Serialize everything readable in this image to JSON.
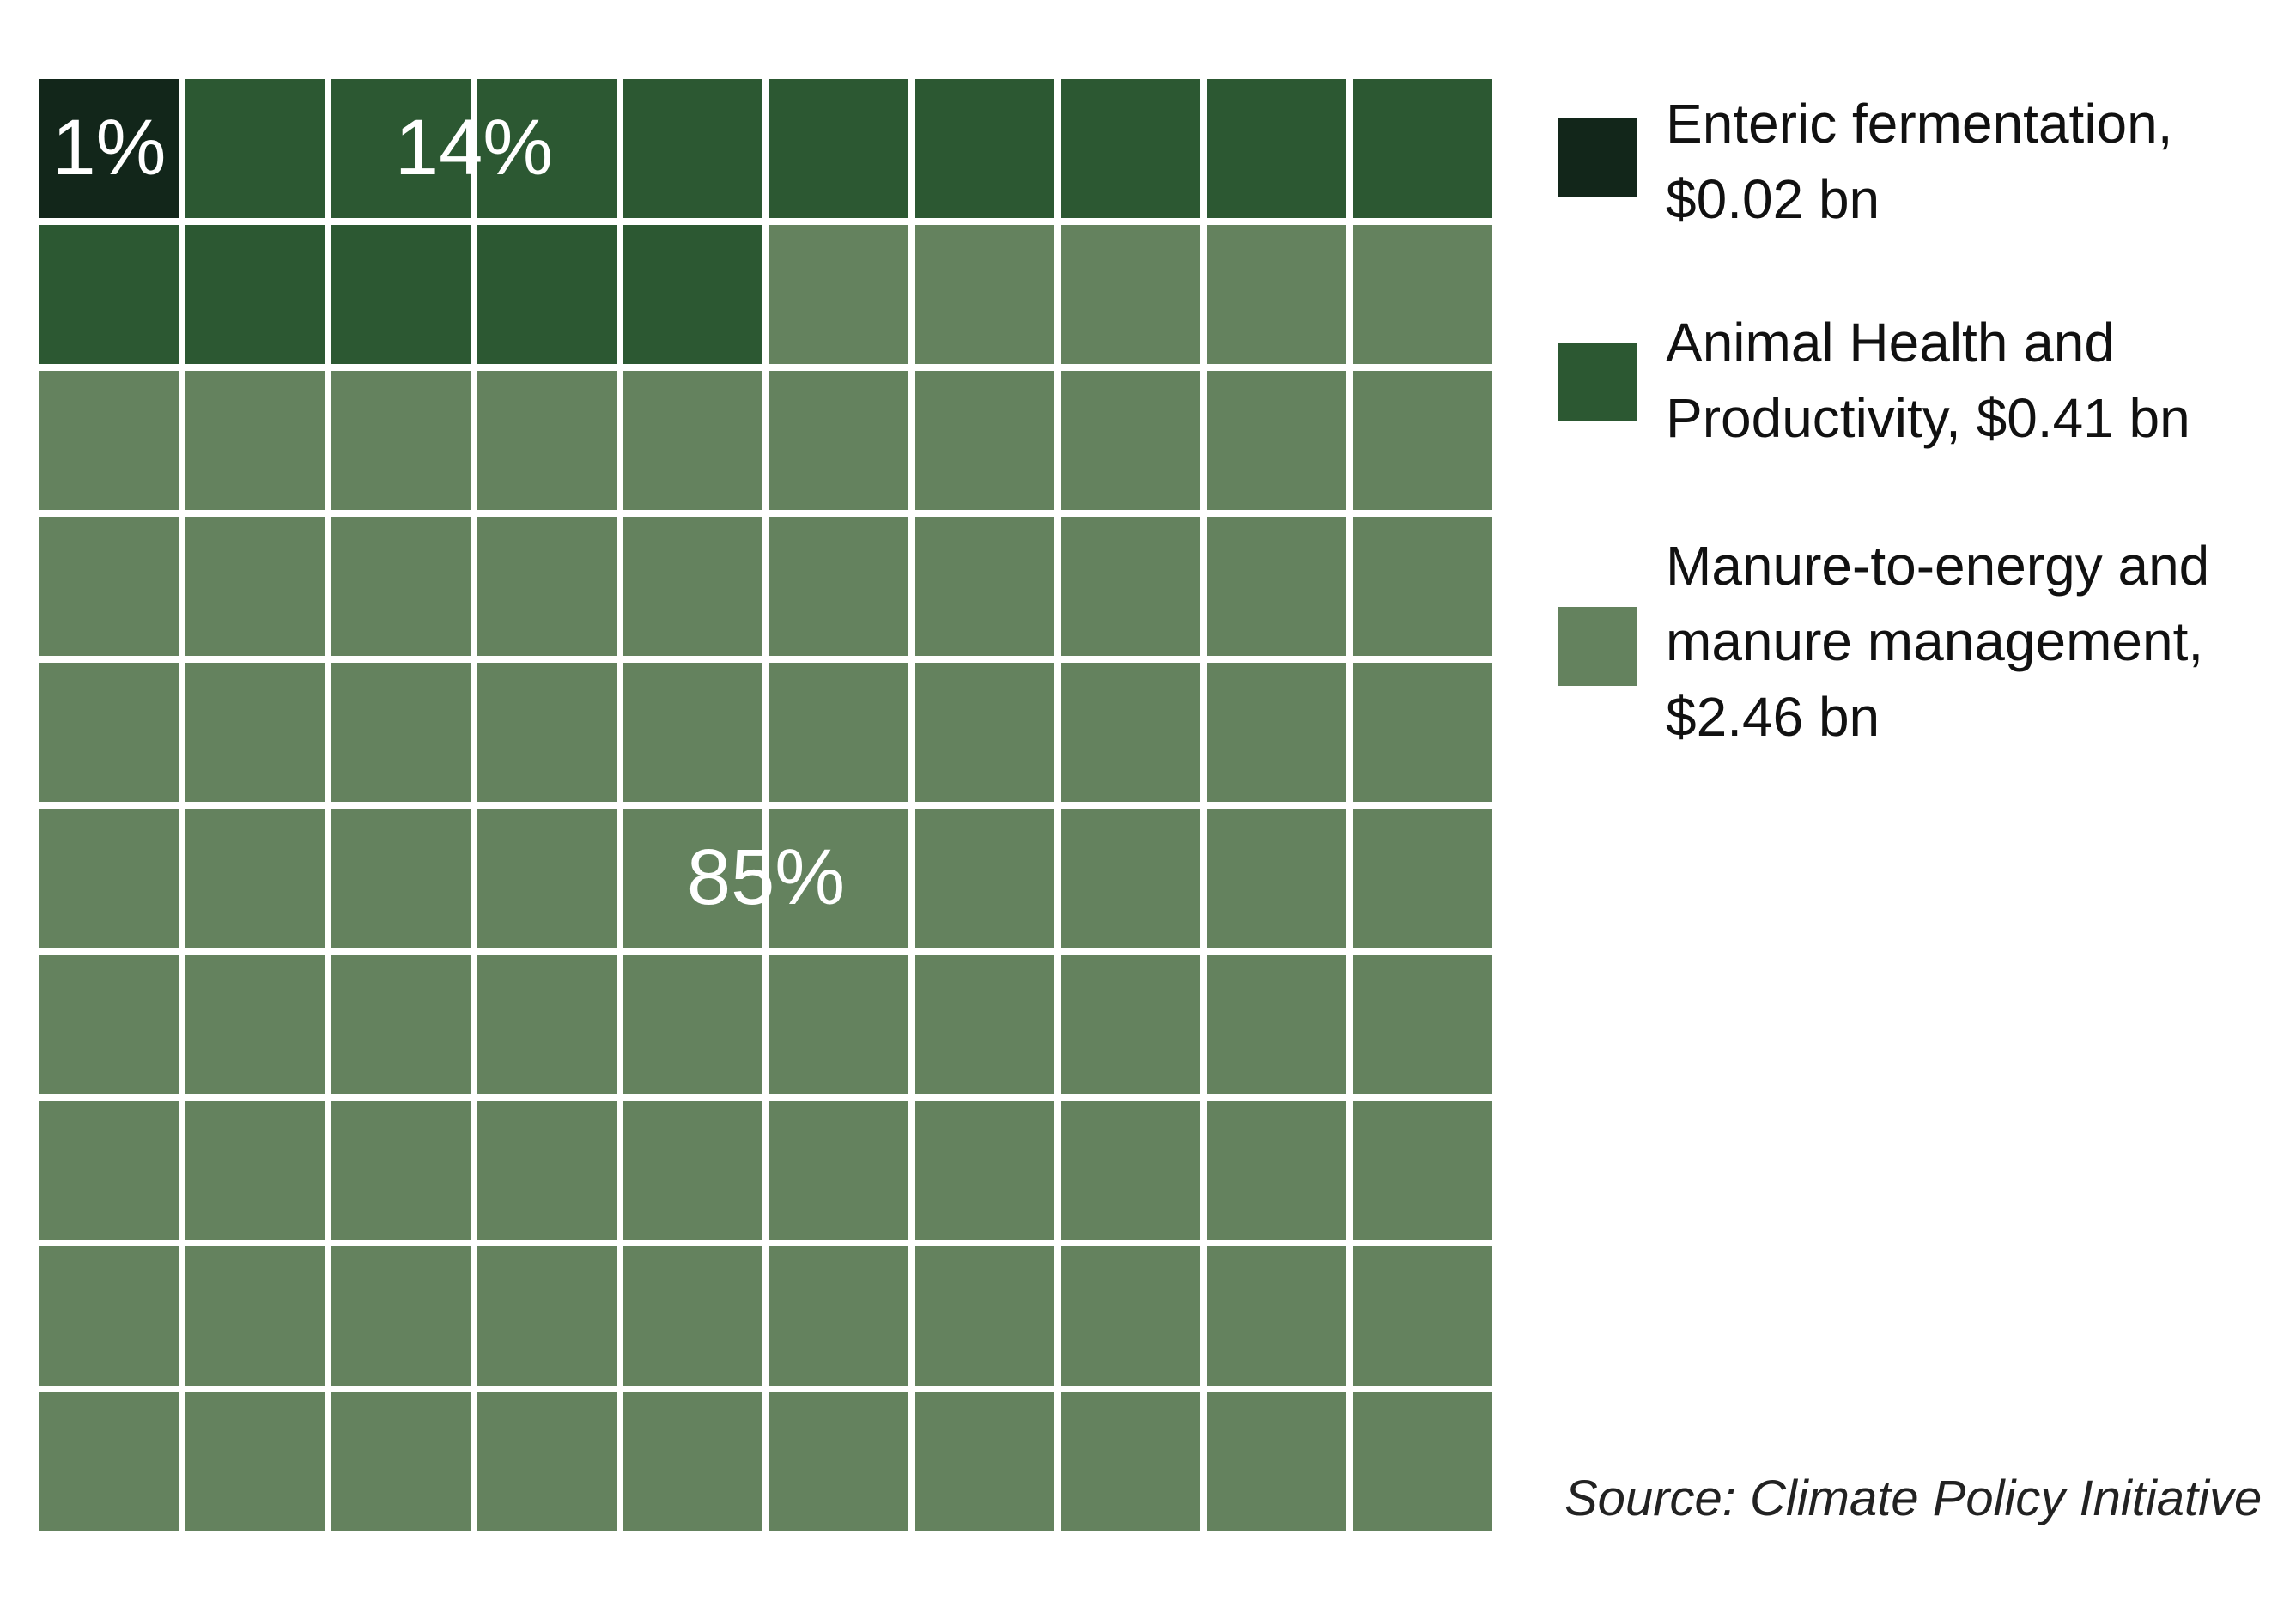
{
  "chart_data": {
    "type": "waffle",
    "grid": {
      "rows": 10,
      "cols": 10
    },
    "series": [
      {
        "name": "Enteric fermentation, $0.02 bn",
        "squares": 1,
        "percent_label": "1%",
        "color": "#12261a"
      },
      {
        "name": "Animal Health and Productivity, $0.41 bn",
        "squares": 14,
        "percent_label": "14%",
        "color": "#2c5832"
      },
      {
        "name": "Manure-to-energy and manure management, $2.46 bn",
        "squares": 85,
        "percent_label": "85%",
        "color": "#64825e"
      }
    ],
    "legend": {
      "position": "right",
      "items": [
        {
          "line1": "Enteric fermentation,",
          "line2": "$0.02 bn",
          "line3": "",
          "color": "#12261a"
        },
        {
          "line1": "Animal Health and",
          "line2": "Productivity, $0.41 bn",
          "line3": "",
          "color": "#2c5832"
        },
        {
          "line1": "Manure-to-energy and",
          "line2": "manure management,",
          "line3": "$2.46 bn",
          "color": "#64825e"
        }
      ]
    },
    "source": "Source: Climate Policy Initiative"
  }
}
